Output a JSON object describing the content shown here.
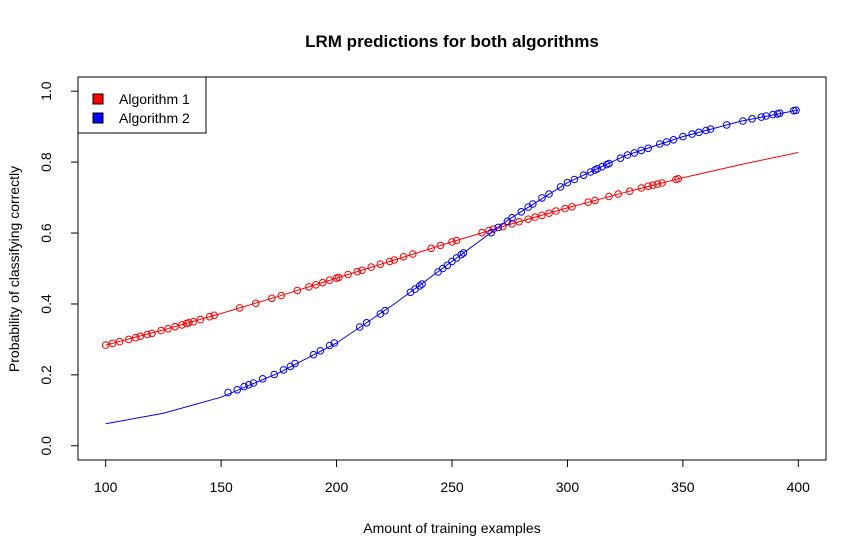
{
  "chart_data": {
    "type": "scatter",
    "title": "LRM predictions for both algorithms",
    "xlabel": "Amount of training examples",
    "ylabel": "Probability of classifying correctly",
    "xlim": [
      88,
      412
    ],
    "ylim": [
      -0.04,
      1.04
    ],
    "xticks": [
      "100",
      "150",
      "200",
      "250",
      "300",
      "350",
      "400"
    ],
    "yticks": [
      "0.0",
      "0.2",
      "0.4",
      "0.6",
      "0.8",
      "1.0"
    ],
    "grid": false,
    "legend_position": "top-left",
    "series": [
      {
        "name": "Algorithm 1",
        "color": "#ff0000",
        "curve": {
          "x": [
            100,
            125,
            150,
            175,
            200,
            225,
            250,
            275,
            300,
            325,
            350,
            375,
            400
          ],
          "y": [
            0.284,
            0.327,
            0.373,
            0.422,
            0.473,
            0.524,
            0.575,
            0.624,
            0.671,
            0.715,
            0.756,
            0.793,
            0.827
          ]
        },
        "points": [
          {
            "x": 100,
            "y": 0.284
          },
          {
            "x": 103,
            "y": 0.289
          },
          {
            "x": 106,
            "y": 0.294
          },
          {
            "x": 110,
            "y": 0.3
          },
          {
            "x": 113,
            "y": 0.305
          },
          {
            "x": 115,
            "y": 0.309
          },
          {
            "x": 118,
            "y": 0.314
          },
          {
            "x": 120,
            "y": 0.317
          },
          {
            "x": 124,
            "y": 0.325
          },
          {
            "x": 127,
            "y": 0.33
          },
          {
            "x": 130,
            "y": 0.336
          },
          {
            "x": 133,
            "y": 0.341
          },
          {
            "x": 135,
            "y": 0.345
          },
          {
            "x": 136,
            "y": 0.347
          },
          {
            "x": 138,
            "y": 0.35
          },
          {
            "x": 141,
            "y": 0.356
          },
          {
            "x": 145,
            "y": 0.364
          },
          {
            "x": 147,
            "y": 0.368
          },
          {
            "x": 158,
            "y": 0.389
          },
          {
            "x": 165,
            "y": 0.402
          },
          {
            "x": 172,
            "y": 0.416
          },
          {
            "x": 176,
            "y": 0.424
          },
          {
            "x": 183,
            "y": 0.438
          },
          {
            "x": 188,
            "y": 0.448
          },
          {
            "x": 191,
            "y": 0.454
          },
          {
            "x": 194,
            "y": 0.46
          },
          {
            "x": 197,
            "y": 0.467
          },
          {
            "x": 200,
            "y": 0.473
          },
          {
            "x": 201,
            "y": 0.475
          },
          {
            "x": 205,
            "y": 0.483
          },
          {
            "x": 209,
            "y": 0.491
          },
          {
            "x": 211,
            "y": 0.495
          },
          {
            "x": 215,
            "y": 0.504
          },
          {
            "x": 219,
            "y": 0.512
          },
          {
            "x": 223,
            "y": 0.52
          },
          {
            "x": 225,
            "y": 0.524
          },
          {
            "x": 229,
            "y": 0.533
          },
          {
            "x": 233,
            "y": 0.541
          },
          {
            "x": 241,
            "y": 0.557
          },
          {
            "x": 245,
            "y": 0.565
          },
          {
            "x": 250,
            "y": 0.575
          },
          {
            "x": 252,
            "y": 0.579
          },
          {
            "x": 263,
            "y": 0.601
          },
          {
            "x": 266,
            "y": 0.607
          },
          {
            "x": 268,
            "y": 0.611
          },
          {
            "x": 272,
            "y": 0.618
          },
          {
            "x": 276,
            "y": 0.626
          },
          {
            "x": 279,
            "y": 0.632
          },
          {
            "x": 283,
            "y": 0.639
          },
          {
            "x": 286,
            "y": 0.645
          },
          {
            "x": 289,
            "y": 0.65
          },
          {
            "x": 292,
            "y": 0.656
          },
          {
            "x": 295,
            "y": 0.662
          },
          {
            "x": 299,
            "y": 0.669
          },
          {
            "x": 302,
            "y": 0.674
          },
          {
            "x": 309,
            "y": 0.687
          },
          {
            "x": 312,
            "y": 0.692
          },
          {
            "x": 318,
            "y": 0.703
          },
          {
            "x": 322,
            "y": 0.71
          },
          {
            "x": 327,
            "y": 0.718
          },
          {
            "x": 332,
            "y": 0.727
          },
          {
            "x": 335,
            "y": 0.732
          },
          {
            "x": 337,
            "y": 0.735
          },
          {
            "x": 339,
            "y": 0.738
          },
          {
            "x": 341,
            "y": 0.741
          },
          {
            "x": 347,
            "y": 0.751
          },
          {
            "x": 348,
            "y": 0.753
          }
        ]
      },
      {
        "name": "Algorithm 2",
        "color": "#0000ff",
        "curve": {
          "x": [
            100,
            125,
            150,
            175,
            200,
            225,
            250,
            275,
            300,
            325,
            350,
            375,
            400
          ],
          "y": [
            0.062,
            0.092,
            0.137,
            0.206,
            0.29,
            0.4,
            0.52,
            0.64,
            0.742,
            0.818,
            0.872,
            0.915,
            0.947
          ]
        },
        "points": [
          {
            "x": 153,
            "y": 0.15
          },
          {
            "x": 157,
            "y": 0.158
          },
          {
            "x": 160,
            "y": 0.167
          },
          {
            "x": 162,
            "y": 0.172
          },
          {
            "x": 164,
            "y": 0.177
          },
          {
            "x": 168,
            "y": 0.189
          },
          {
            "x": 173,
            "y": 0.201
          },
          {
            "x": 177,
            "y": 0.214
          },
          {
            "x": 180,
            "y": 0.224
          },
          {
            "x": 182,
            "y": 0.232
          },
          {
            "x": 190,
            "y": 0.257
          },
          {
            "x": 193,
            "y": 0.268
          },
          {
            "x": 197,
            "y": 0.283
          },
          {
            "x": 199,
            "y": 0.29
          },
          {
            "x": 210,
            "y": 0.335
          },
          {
            "x": 213,
            "y": 0.347
          },
          {
            "x": 219,
            "y": 0.372
          },
          {
            "x": 221,
            "y": 0.381
          },
          {
            "x": 232,
            "y": 0.433
          },
          {
            "x": 234,
            "y": 0.442
          },
          {
            "x": 236,
            "y": 0.451
          },
          {
            "x": 237,
            "y": 0.456
          },
          {
            "x": 244,
            "y": 0.49
          },
          {
            "x": 246,
            "y": 0.5
          },
          {
            "x": 248,
            "y": 0.509
          },
          {
            "x": 250,
            "y": 0.52
          },
          {
            "x": 252,
            "y": 0.53
          },
          {
            "x": 254,
            "y": 0.539
          },
          {
            "x": 255,
            "y": 0.544
          },
          {
            "x": 267,
            "y": 0.601
          },
          {
            "x": 270,
            "y": 0.616
          },
          {
            "x": 274,
            "y": 0.633
          },
          {
            "x": 276,
            "y": 0.643
          },
          {
            "x": 280,
            "y": 0.66
          },
          {
            "x": 283,
            "y": 0.673
          },
          {
            "x": 285,
            "y": 0.682
          },
          {
            "x": 289,
            "y": 0.699
          },
          {
            "x": 292,
            "y": 0.71
          },
          {
            "x": 297,
            "y": 0.73
          },
          {
            "x": 300,
            "y": 0.742
          },
          {
            "x": 303,
            "y": 0.751
          },
          {
            "x": 307,
            "y": 0.763
          },
          {
            "x": 310,
            "y": 0.772
          },
          {
            "x": 312,
            "y": 0.778
          },
          {
            "x": 313,
            "y": 0.781
          },
          {
            "x": 315,
            "y": 0.787
          },
          {
            "x": 317,
            "y": 0.793
          },
          {
            "x": 318,
            "y": 0.796
          },
          {
            "x": 323,
            "y": 0.811
          },
          {
            "x": 326,
            "y": 0.82
          },
          {
            "x": 329,
            "y": 0.826
          },
          {
            "x": 332,
            "y": 0.833
          },
          {
            "x": 335,
            "y": 0.839
          },
          {
            "x": 340,
            "y": 0.851
          },
          {
            "x": 343,
            "y": 0.857
          },
          {
            "x": 346,
            "y": 0.863
          },
          {
            "x": 350,
            "y": 0.872
          },
          {
            "x": 354,
            "y": 0.879
          },
          {
            "x": 357,
            "y": 0.884
          },
          {
            "x": 360,
            "y": 0.889
          },
          {
            "x": 362,
            "y": 0.893
          },
          {
            "x": 369,
            "y": 0.905
          },
          {
            "x": 376,
            "y": 0.916
          },
          {
            "x": 380,
            "y": 0.922
          },
          {
            "x": 384,
            "y": 0.927
          },
          {
            "x": 386,
            "y": 0.93
          },
          {
            "x": 389,
            "y": 0.934
          },
          {
            "x": 391,
            "y": 0.936
          },
          {
            "x": 392,
            "y": 0.938
          },
          {
            "x": 398,
            "y": 0.945
          },
          {
            "x": 399,
            "y": 0.946
          }
        ]
      }
    ]
  }
}
